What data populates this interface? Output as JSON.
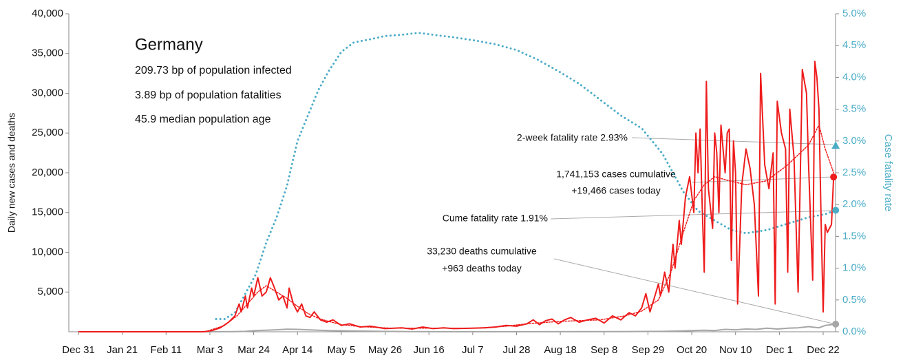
{
  "chart_data": {
    "type": "line",
    "title": "Germany",
    "subtitle_lines": [
      "209.73 bp of population infected",
      "3.89 bp of population fatalities",
      "45.9 median population age"
    ],
    "ylabel": "Daily new cases and deaths",
    "y2label": "Case fatality rate",
    "xlim": [
      0,
      363
    ],
    "xticks": [
      {
        "value": 0,
        "label": "Dec 31"
      },
      {
        "value": 21,
        "label": "Jan 21"
      },
      {
        "value": 42,
        "label": "Feb 11"
      },
      {
        "value": 63,
        "label": "Mar 3"
      },
      {
        "value": 84,
        "label": "Mar 24"
      },
      {
        "value": 105,
        "label": "Apr 14"
      },
      {
        "value": 126,
        "label": "May 5"
      },
      {
        "value": 147,
        "label": "May 26"
      },
      {
        "value": 168,
        "label": "Jun 16"
      },
      {
        "value": 189,
        "label": "Jul 7"
      },
      {
        "value": 210,
        "label": "Jul 28"
      },
      {
        "value": 231,
        "label": "Aug 18"
      },
      {
        "value": 252,
        "label": "Sep 8"
      },
      {
        "value": 273,
        "label": "Sep 29"
      },
      {
        "value": 294,
        "label": "Oct 20"
      },
      {
        "value": 315,
        "label": "Nov 10"
      },
      {
        "value": 336,
        "label": "Dec 1"
      },
      {
        "value": 357,
        "label": "Dec 22"
      }
    ],
    "ylim": [
      0,
      40000
    ],
    "yticks": [
      {
        "value": 5000,
        "label": "5,000"
      },
      {
        "value": 10000,
        "label": "10,000"
      },
      {
        "value": 15000,
        "label": "15,000"
      },
      {
        "value": 20000,
        "label": "20,000"
      },
      {
        "value": 25000,
        "label": "25,000"
      },
      {
        "value": 30000,
        "label": "30,000"
      },
      {
        "value": 35000,
        "label": "35,000"
      },
      {
        "value": 40000,
        "label": "40,000"
      }
    ],
    "y2lim": [
      0,
      5
    ],
    "y2ticks": [
      {
        "value": 0,
        "label": "0.0%"
      },
      {
        "value": 0.5,
        "label": "0.5%"
      },
      {
        "value": 1,
        "label": "1.0%"
      },
      {
        "value": 1.5,
        "label": "1.5%"
      },
      {
        "value": 2,
        "label": "2.0%"
      },
      {
        "value": 2.5,
        "label": "2.5%"
      },
      {
        "value": 3,
        "label": "3.0%"
      },
      {
        "value": 3.5,
        "label": "3.5%"
      },
      {
        "value": 4,
        "label": "4.0%"
      },
      {
        "value": 4.5,
        "label": "4.5%"
      },
      {
        "value": 5,
        "label": "5.0%"
      }
    ],
    "series": [
      {
        "color": "#4bacc6",
        "style": "dotted",
        "axis": "y2",
        "x": [
          66,
          70,
          75,
          80,
          85,
          90,
          95,
          100,
          105,
          110,
          115,
          120,
          126,
          132,
          140,
          147,
          155,
          163,
          170,
          180,
          190,
          200,
          210,
          220,
          230,
          240,
          250,
          260,
          270,
          280,
          290,
          297,
          305,
          313,
          320,
          330,
          340,
          350,
          358,
          363
        ],
        "values": [
          0.2,
          0.2,
          0.3,
          0.6,
          0.9,
          1.4,
          1.8,
          2.3,
          3.0,
          3.4,
          3.8,
          4.1,
          4.4,
          4.55,
          4.6,
          4.65,
          4.67,
          4.7,
          4.67,
          4.63,
          4.58,
          4.52,
          4.43,
          4.28,
          4.1,
          3.9,
          3.65,
          3.4,
          3.2,
          2.8,
          2.2,
          1.9,
          1.75,
          1.6,
          1.55,
          1.6,
          1.7,
          1.8,
          1.85,
          1.91
        ]
      },
      {
        "color": "#a6a6a6",
        "style": "solid",
        "x": [
          0,
          60,
          75,
          80,
          85,
          90,
          95,
          100,
          105,
          110,
          115,
          120,
          130,
          145,
          160,
          200,
          260,
          280,
          290,
          300,
          305,
          310,
          315,
          320,
          325,
          330,
          335,
          340,
          345,
          350,
          355,
          358,
          363
        ],
        "values": [
          0,
          0,
          20,
          50,
          150,
          200,
          250,
          320,
          300,
          250,
          200,
          150,
          100,
          50,
          20,
          10,
          20,
          50,
          100,
          200,
          150,
          300,
          250,
          350,
          300,
          450,
          350,
          450,
          500,
          650,
          500,
          800,
          963
        ]
      },
      {
        "color": "#ee1c1c",
        "style": "dotted",
        "x": [
          62,
          70,
          76,
          82,
          86,
          90,
          95,
          100,
          105,
          110,
          115,
          120,
          126,
          135,
          150,
          170,
          190,
          205,
          215,
          230,
          250,
          262,
          270,
          278,
          284,
          290,
          295,
          300,
          305,
          312,
          320,
          330,
          340,
          350,
          355,
          358,
          362
        ],
        "values": [
          100,
          800,
          2000,
          3800,
          5000,
          5800,
          5000,
          4200,
          3200,
          2300,
          1700,
          1300,
          900,
          650,
          450,
          450,
          450,
          700,
          1000,
          1300,
          1500,
          2000,
          2600,
          4000,
          7500,
          12500,
          16500,
          18500,
          19500,
          19000,
          18500,
          19000,
          21000,
          23500,
          26000,
          23000,
          20000
        ]
      },
      {
        "color": "#ee1c1c",
        "style": "solid",
        "x": [
          0,
          60,
          64,
          68,
          72,
          75,
          77,
          78,
          80,
          81,
          83,
          84,
          86,
          88,
          90,
          92,
          94,
          96,
          98,
          100,
          101,
          103,
          105,
          107,
          109,
          111,
          113,
          116,
          119,
          122,
          126,
          130,
          135,
          140,
          147,
          155,
          160,
          165,
          170,
          175,
          180,
          189,
          195,
          200,
          205,
          210,
          215,
          218,
          221,
          224,
          227,
          230,
          233,
          236,
          240,
          244,
          248,
          252,
          256,
          260,
          264,
          267,
          270,
          272,
          274,
          276,
          278,
          279,
          281,
          283,
          285,
          286,
          288,
          289,
          291,
          293,
          295,
          296,
          297,
          298,
          299,
          300,
          301,
          302,
          304,
          305,
          306,
          307,
          308,
          310,
          311,
          312,
          313,
          314,
          315,
          316,
          318,
          320,
          322,
          324,
          326,
          327,
          329,
          331,
          333,
          334,
          335,
          337,
          339,
          340,
          341,
          343,
          345,
          347,
          349,
          350,
          352,
          353,
          354,
          355,
          356,
          357,
          358,
          359,
          361,
          362
        ],
        "values": [
          0,
          0,
          150,
          500,
          1200,
          2000,
          3500,
          2500,
          4500,
          3000,
          5500,
          4500,
          6800,
          4500,
          5000,
          6800,
          5500,
          4000,
          4500,
          3000,
          5500,
          3500,
          2500,
          3500,
          2000,
          1800,
          2500,
          1500,
          1200,
          1500,
          800,
          1000,
          600,
          700,
          400,
          500,
          350,
          600,
          400,
          500,
          400,
          450,
          500,
          600,
          800,
          700,
          1000,
          1500,
          900,
          1400,
          1600,
          1000,
          1500,
          1800,
          1200,
          1500,
          1700,
          1100,
          2000,
          1500,
          2400,
          2000,
          3000,
          4800,
          2500,
          4200,
          6000,
          4500,
          7500,
          5000,
          11000,
          8000,
          14000,
          11000,
          17000,
          19500,
          15000,
          25000,
          20000,
          25500,
          16000,
          7500,
          31500,
          18000,
          13000,
          25000,
          22500,
          15000,
          26000,
          20000,
          25000,
          25500,
          9000,
          24000,
          20000,
          3500,
          18500,
          23000,
          20500,
          16000,
          4500,
          32500,
          21000,
          18000,
          22500,
          3500,
          29000,
          25000,
          23000,
          7500,
          28000,
          22000,
          5000,
          33000,
          30000,
          21000,
          6500,
          34000,
          32000,
          28000,
          14000,
          2500,
          13500,
          12500,
          13500,
          19466
        ]
      }
    ],
    "fatality_2wk": 2.93,
    "annotations": [
      "2-week fatality rate 2.93%",
      "1,741,153 cases cumulative",
      "+19,466 cases today",
      "Cume fatality rate 1.91%",
      "33,230 deaths cumulative",
      "+963 deaths today"
    ]
  }
}
